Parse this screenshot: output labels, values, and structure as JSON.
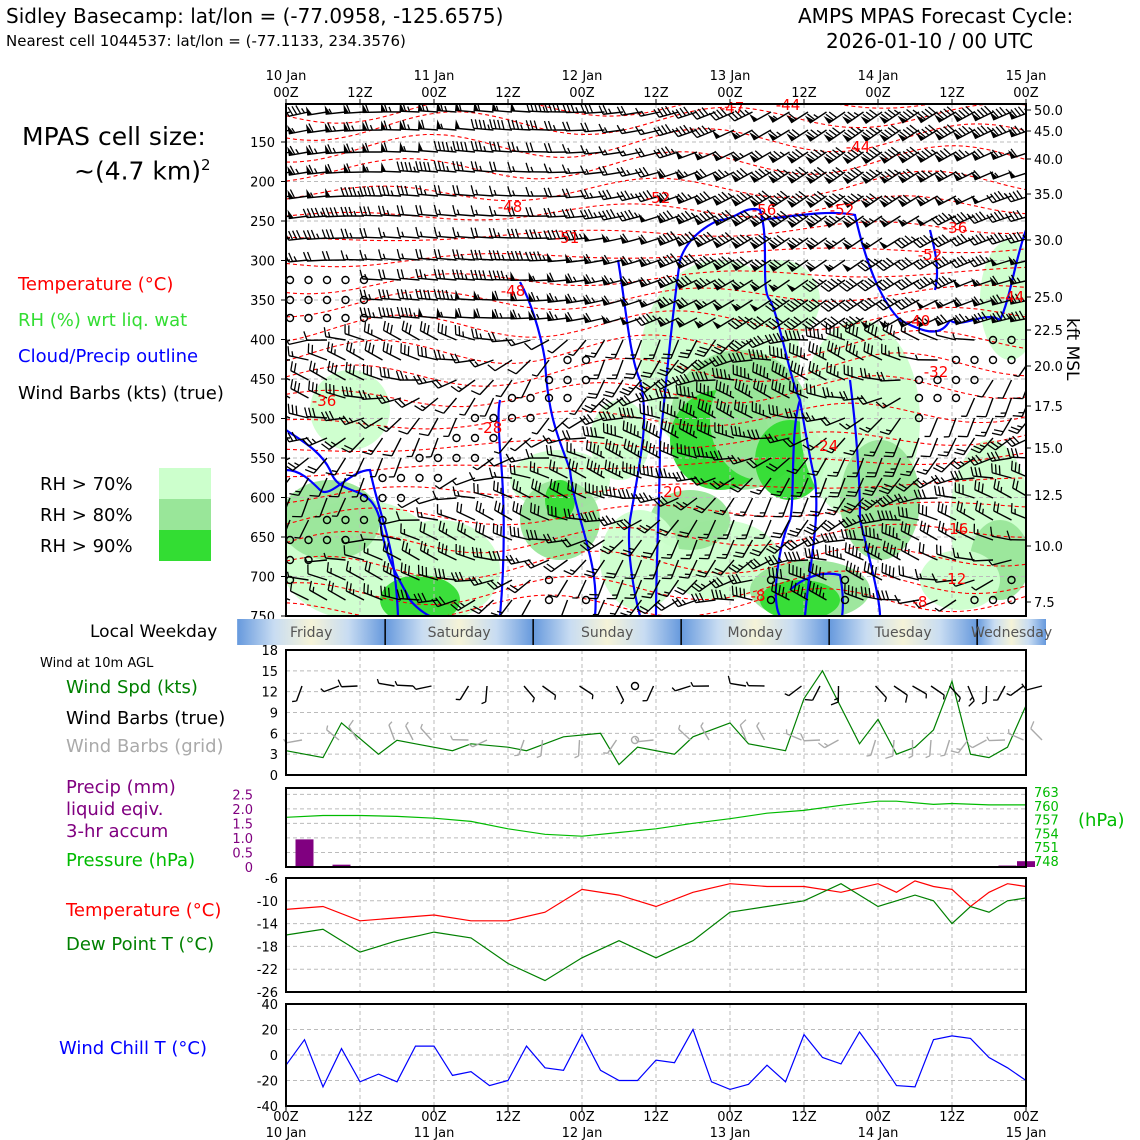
{
  "header": {
    "site_line": "Sidley Basecamp: lat/lon = (-77.0958, -125.6575)",
    "cell_line": "Nearest cell 1044537: lat/lon = (-77.1133, 234.3576)",
    "cycle_label": "AMPS MPAS Forecast Cycle:",
    "cycle_value": "2026-01-10 / 00 UTC"
  },
  "sidebar": {
    "cell_size_label": "MPAS cell size:",
    "cell_size_value": "~(4.7 km)",
    "cell_size_exp": "2",
    "legend_temperature": "Temperature (°C)",
    "legend_rh": "RH (%) wrt liq. wat",
    "legend_cloud": "Cloud/Precip outline",
    "legend_wind": "Wind Barbs (kts) (true)",
    "rh_levels": [
      "RH > 70%",
      "RH > 80%",
      "RH > 90%"
    ],
    "local_weekday_label": "Local Weekday",
    "wind10m_label": "Wind at 10m AGL",
    "wind_spd_label": "Wind Spd (kts)",
    "wind_barbs_true_label": "Wind Barbs (true)",
    "wind_barbs_grid_label": "Wind Barbs (grid)",
    "precip_label_1": "Precip (mm)",
    "precip_label_2": "liquid eqiv.",
    "precip_label_3": "3-hr accum",
    "pressure_label": "Pressure (hPa)",
    "pressure_unit": "(hPa)",
    "temp_label": "Temperature (°C)",
    "dewpoint_label": "Dew Point T (°C)",
    "windchill_label": "Wind Chill T (°C)",
    "kft_label": "kft MSL"
  },
  "colors": {
    "temperature": "#ff0000",
    "rh": "#33cc33",
    "cloud": "#0000ff",
    "wind": "#000000",
    "wind_grid": "#aaaaaa",
    "precip": "#800080",
    "pressure": "#00bb00",
    "dewpoint": "#008000",
    "windchill": "#0000ff",
    "rh70": "#ccffcc",
    "rh80": "#99e699",
    "rh90": "#33dd33"
  },
  "time_axis": {
    "top_dates": [
      "10 Jan",
      "11 Jan",
      "12 Jan",
      "13 Jan",
      "14 Jan",
      "15 Jan"
    ],
    "ticks": [
      "00Z",
      "12Z",
      "00Z",
      "12Z",
      "00Z",
      "12Z",
      "00Z",
      "12Z",
      "00Z",
      "12Z",
      "00Z"
    ],
    "bottom_dates": [
      "10 Jan",
      "11 Jan",
      "12 Jan",
      "13 Jan",
      "14 Jan",
      "15 Jan"
    ]
  },
  "weekdays": [
    "Friday",
    "Saturday",
    "Sunday",
    "Monday",
    "Tuesday",
    "Wednesday"
  ],
  "chart_data": [
    {
      "type": "heatmap",
      "name": "time-height",
      "y_pressure_ticks": [
        150,
        200,
        250,
        300,
        350,
        400,
        450,
        500,
        550,
        600,
        650,
        700,
        750
      ],
      "y_kft_ticks": [
        "50.0",
        "45.0",
        "40.0",
        "35.0",
        "30.0",
        "25.0",
        "22.5",
        "20.0",
        "17.5",
        "15.0",
        "12.5",
        "10.0",
        "7.5"
      ],
      "temp_labels": [
        "-47",
        "-44",
        "-44",
        "-48",
        "-52",
        "-56",
        "-52",
        "-36",
        "-51",
        "-48",
        "-52",
        "-44",
        "-40",
        "-36",
        "-32",
        "-28",
        "-24",
        "-20",
        "-16",
        "-12",
        "-8",
        "-8"
      ]
    },
    {
      "type": "line",
      "name": "wind-speed",
      "ylim": [
        0,
        18
      ],
      "yticks": [
        0,
        3,
        6,
        9,
        12,
        15,
        18
      ],
      "x_hours": [
        0,
        6,
        9,
        15,
        18,
        21,
        27,
        30,
        36,
        39,
        45,
        51,
        54,
        57,
        63,
        66,
        72,
        75,
        81,
        84,
        87,
        93,
        96,
        99,
        102,
        105,
        108,
        111,
        114,
        117,
        120
      ],
      "values": [
        3.5,
        2.5,
        7.5,
        3,
        5,
        4.5,
        3.5,
        4.5,
        4,
        3.5,
        5.5,
        6,
        1.5,
        4,
        3,
        5.5,
        7.5,
        4.5,
        3.5,
        11,
        15,
        4.5,
        8,
        3,
        4,
        6.5,
        13.5,
        3,
        2.5,
        4,
        10
      ]
    },
    {
      "type": "bar",
      "name": "precip",
      "ylim": [
        0,
        2.5
      ],
      "yticks": [
        "0",
        "0.5",
        "1.0",
        "1.5",
        "2.0",
        "2.5"
      ],
      "x_hours": [
        3,
        9,
        117,
        120
      ],
      "values": [
        0.95,
        0.08,
        0.05,
        0.2
      ]
    },
    {
      "type": "line",
      "name": "pressure",
      "ylim": [
        746.5,
        764
      ],
      "yticks": [
        "763",
        "760",
        "757",
        "754",
        "751",
        "748"
      ],
      "x_hours": [
        0,
        6,
        12,
        18,
        24,
        30,
        36,
        42,
        48,
        54,
        60,
        66,
        72,
        78,
        84,
        90,
        96,
        99,
        105,
        108,
        114,
        120
      ],
      "values": [
        757.5,
        757.9,
        757.9,
        757.7,
        757.3,
        756.6,
        755.0,
        753.8,
        753.4,
        754.2,
        755.0,
        756.2,
        757.2,
        758.4,
        759.0,
        760.1,
        761.0,
        761.0,
        760.3,
        760.5,
        760.2,
        760.2
      ]
    },
    {
      "type": "line",
      "name": "temp-dewpoint",
      "ylim": [
        -26,
        -6
      ],
      "yticks": [
        -6,
        -10,
        -14,
        -18,
        -22,
        -26
      ],
      "series": [
        {
          "name": "Temperature (°C)",
          "x": [
            0,
            6,
            12,
            18,
            24,
            30,
            36,
            42,
            48,
            54,
            60,
            66,
            72,
            78,
            84,
            90,
            96,
            99,
            102,
            105,
            108,
            111,
            114,
            117,
            120
          ],
          "values": [
            -11.5,
            -11,
            -13.5,
            -13,
            -12.5,
            -13.5,
            -13.5,
            -12,
            -8,
            -9,
            -11,
            -8.5,
            -7,
            -7.5,
            -7.5,
            -8.5,
            -7,
            -8.5,
            -6.5,
            -7.5,
            -8,
            -11,
            -8.5,
            -7,
            -7.5
          ]
        },
        {
          "name": "Dew Point T (°C)",
          "x": [
            0,
            6,
            12,
            18,
            24,
            30,
            36,
            42,
            48,
            54,
            60,
            66,
            72,
            78,
            84,
            90,
            96,
            99,
            102,
            105,
            108,
            111,
            114,
            117,
            120
          ],
          "values": [
            -16,
            -15,
            -19,
            -17,
            -15.5,
            -16.5,
            -21,
            -24,
            -20,
            -17,
            -20,
            -17,
            -12,
            -11,
            -10,
            -7,
            -11,
            -10,
            -9,
            -10,
            -14,
            -11,
            -12,
            -10,
            -9.5
          ]
        }
      ]
    },
    {
      "type": "line",
      "name": "wind-chill",
      "ylim": [
        -40,
        40
      ],
      "yticks": [
        40,
        20,
        0,
        -20,
        -40
      ],
      "x_hours": [
        0,
        3,
        6,
        9,
        12,
        15,
        18,
        21,
        24,
        27,
        30,
        33,
        36,
        39,
        42,
        45,
        48,
        51,
        54,
        57,
        60,
        63,
        66,
        69,
        72,
        75,
        78,
        81,
        84,
        87,
        90,
        93,
        96,
        99,
        102,
        105,
        108,
        111,
        114,
        117,
        120
      ],
      "values": [
        -8,
        12,
        -25,
        5,
        -21,
        -15,
        -21,
        7,
        7,
        -16,
        -13,
        -24,
        -20,
        7,
        -10,
        -12,
        16,
        -12,
        -20,
        -20,
        -4,
        -6,
        20,
        -21,
        -27,
        -23,
        -8,
        -21,
        16,
        -2,
        -7,
        18,
        -2,
        -24,
        -25,
        12,
        15,
        13,
        -2,
        -10,
        -20
      ]
    }
  ]
}
